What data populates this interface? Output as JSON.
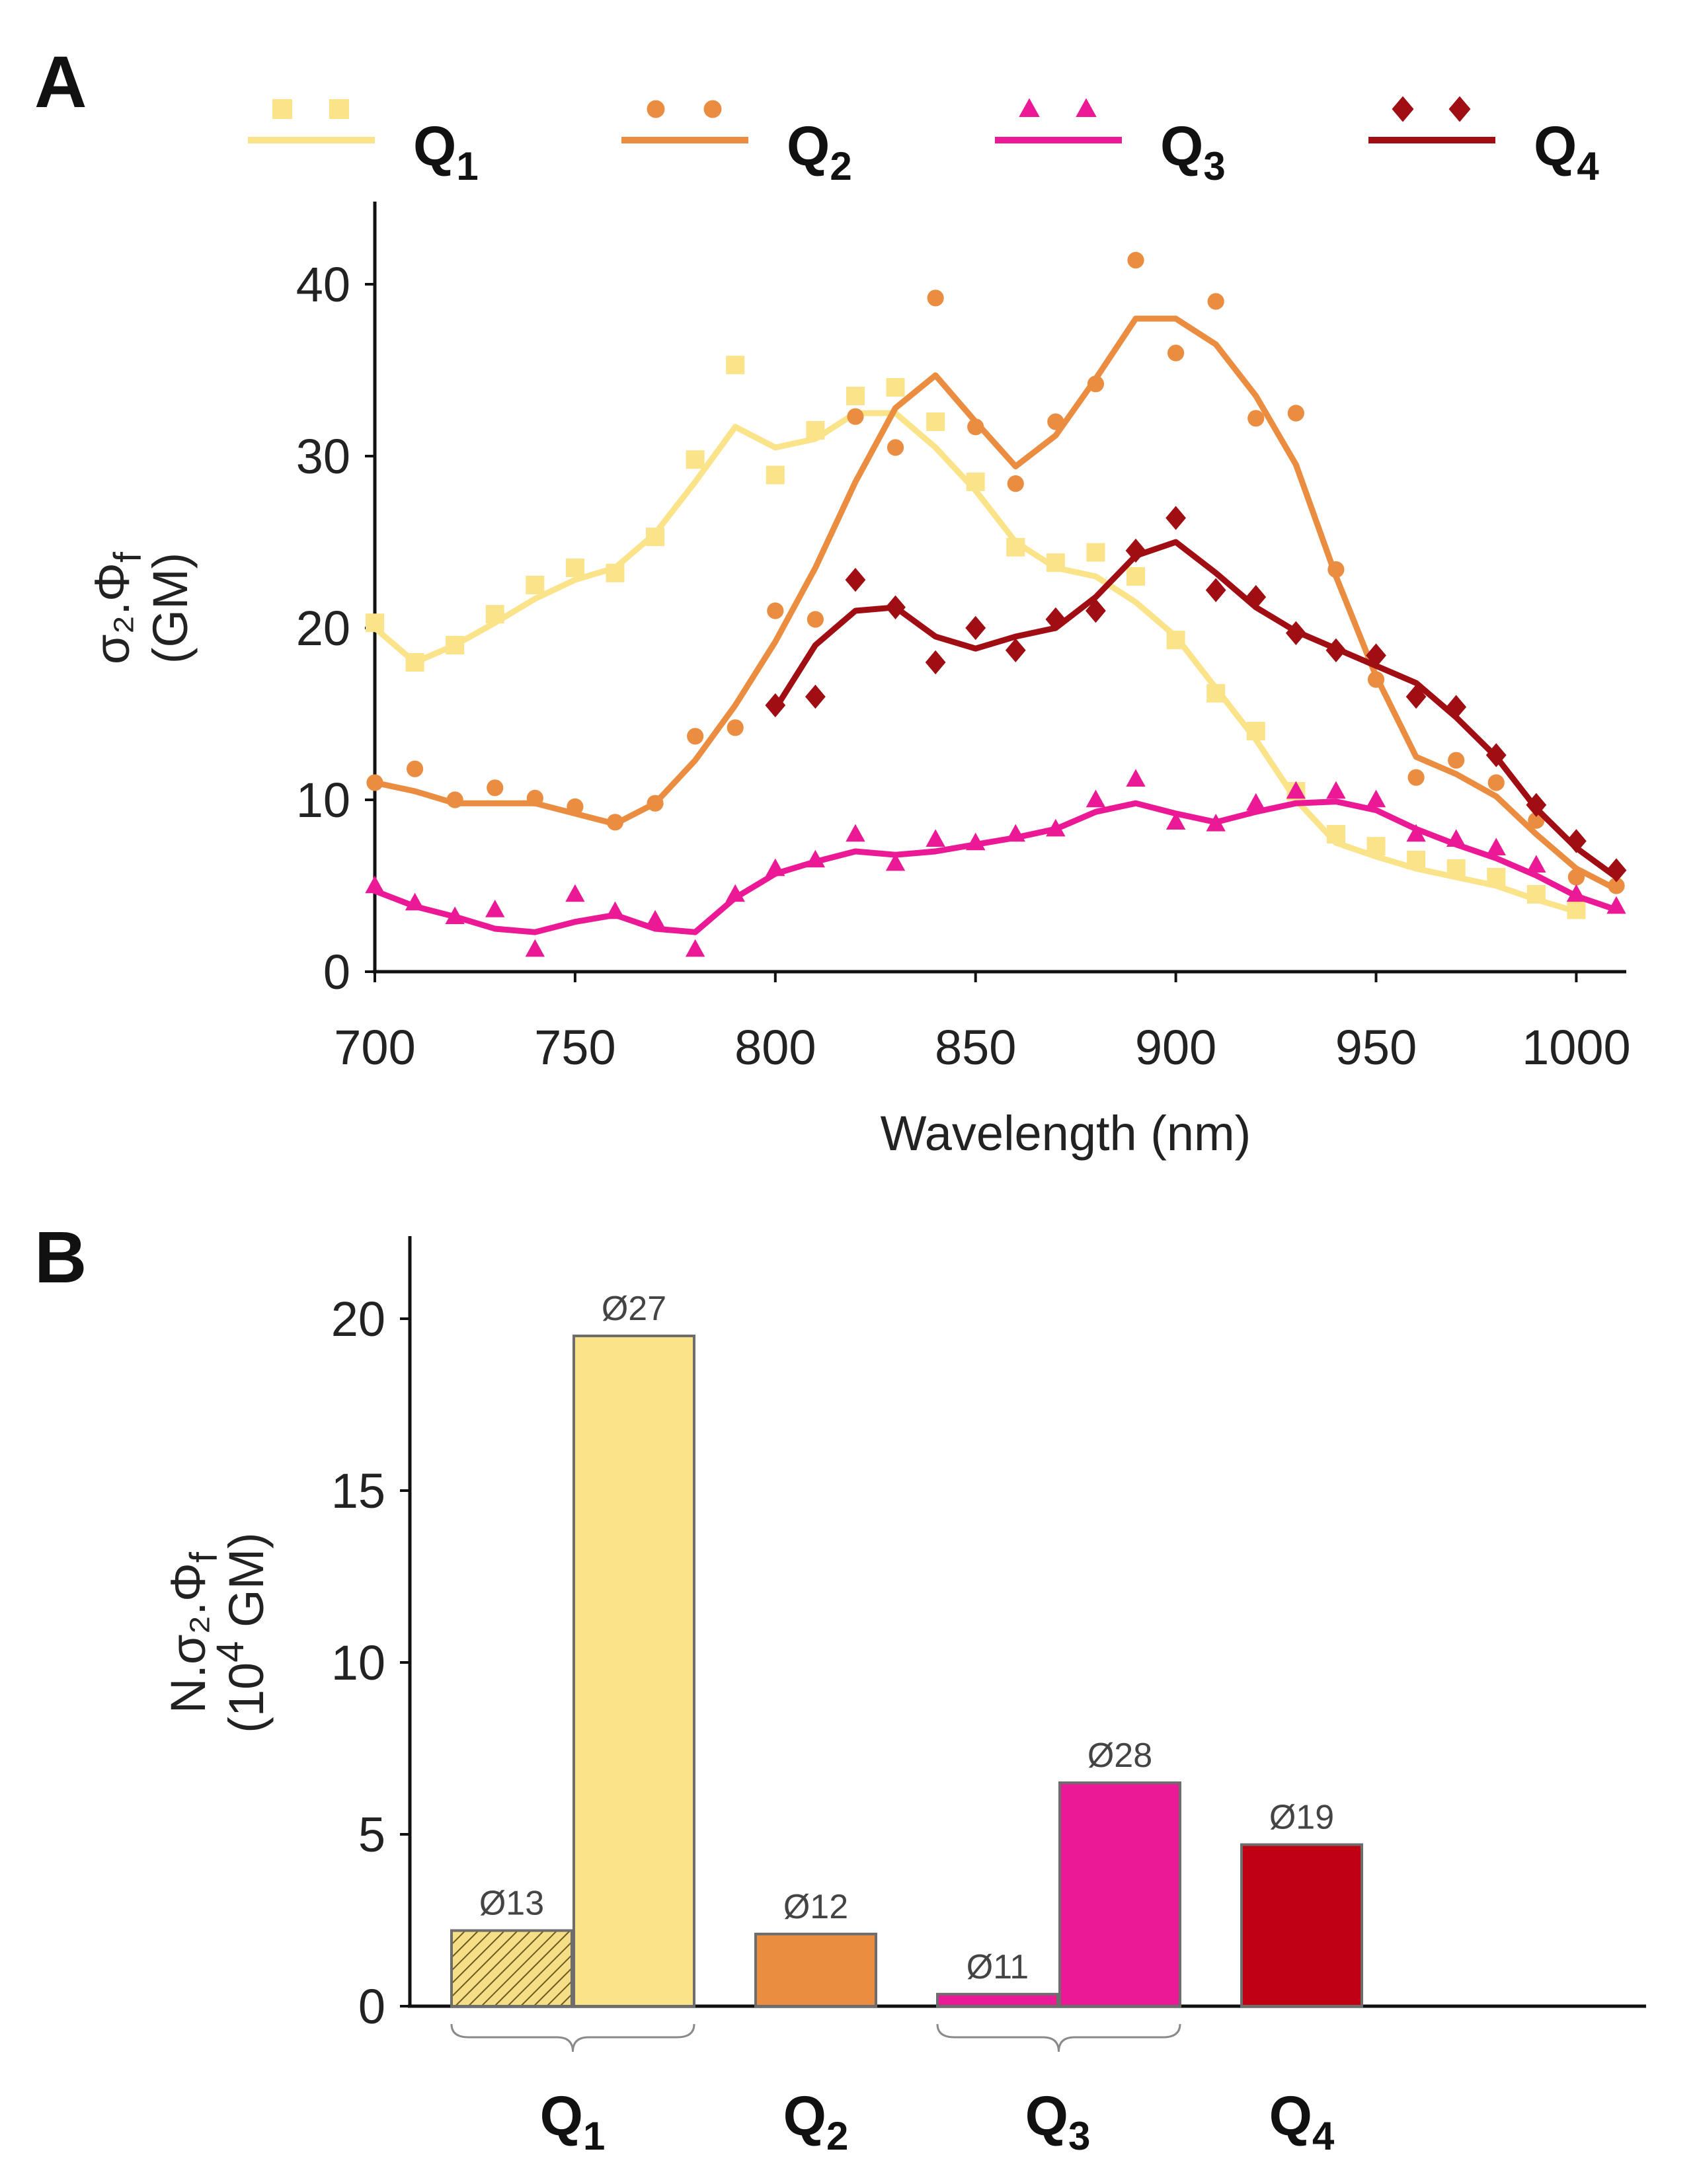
{
  "panel_a_letter": "A",
  "panel_b_letter": "B",
  "chart_data": [
    {
      "type": "line",
      "panel": "A",
      "xlabel": "Wavelength (nm)",
      "ylabel_main": "σ₂.Φ",
      "ylabel_sub": "f",
      "ylabel_unit": "(GM)",
      "xlim": [
        700,
        1010
      ],
      "ylim": [
        0,
        45
      ],
      "xticks": [
        "700",
        "750",
        "800",
        "850",
        "900",
        "950",
        "1000"
      ],
      "yticks": [
        "0",
        "10",
        "20",
        "30",
        "40"
      ],
      "legend": [
        {
          "name": "Q",
          "sub": "1",
          "color": "#FBE38A",
          "marker": "square"
        },
        {
          "name": "Q",
          "sub": "2",
          "color": "#EB8D41",
          "marker": "circle"
        },
        {
          "name": "Q",
          "sub": "3",
          "color": "#EC1996",
          "marker": "triangle"
        },
        {
          "name": "Q",
          "sub": "4",
          "color": "#A00D12",
          "marker": "diamond"
        }
      ],
      "series": [
        {
          "name": "Q1",
          "color": "#FBE38A",
          "marker": "square",
          "points": [
            [
              700,
              20.3
            ],
            [
              710,
              18
            ],
            [
              720,
              19
            ],
            [
              730,
              20.8
            ],
            [
              740,
              22.5
            ],
            [
              750,
              23.5
            ],
            [
              760,
              23.2
            ],
            [
              770,
              25.3
            ],
            [
              780,
              29.8
            ],
            [
              790,
              35.3
            ],
            [
              800,
              28.9
            ],
            [
              810,
              31.5
            ],
            [
              820,
              33.5
            ],
            [
              830,
              34
            ],
            [
              840,
              32
            ],
            [
              850,
              28.5
            ],
            [
              860,
              24.7
            ],
            [
              870,
              23.8
            ],
            [
              880,
              24.4
            ],
            [
              890,
              23
            ],
            [
              900,
              19.3
            ],
            [
              910,
              16.2
            ],
            [
              920,
              14
            ],
            [
              930,
              10.5
            ],
            [
              940,
              8
            ],
            [
              950,
              7.3
            ],
            [
              960,
              6.5
            ],
            [
              970,
              6
            ],
            [
              980,
              5.5
            ],
            [
              990,
              4.5
            ],
            [
              1000,
              3.6
            ]
          ],
          "line": [
            [
              700,
              20
            ],
            [
              710,
              18
            ],
            [
              720,
              19
            ],
            [
              730,
              20.3
            ],
            [
              740,
              21.7
            ],
            [
              750,
              22.8
            ],
            [
              760,
              23.5
            ],
            [
              770,
              25.5
            ],
            [
              780,
              28.5
            ],
            [
              790,
              31.7
            ],
            [
              800,
              30.5
            ],
            [
              810,
              31
            ],
            [
              820,
              32.5
            ],
            [
              830,
              32.5
            ],
            [
              840,
              30.5
            ],
            [
              850,
              28
            ],
            [
              860,
              25
            ],
            [
              870,
              23.5
            ],
            [
              880,
              23
            ],
            [
              890,
              21.5
            ],
            [
              900,
              19.5
            ],
            [
              910,
              16.5
            ],
            [
              920,
              13.5
            ],
            [
              930,
              10
            ],
            [
              940,
              7.5
            ],
            [
              950,
              6.7
            ],
            [
              960,
              6
            ],
            [
              970,
              5.5
            ],
            [
              980,
              5
            ],
            [
              990,
              4.2
            ],
            [
              1000,
              3.5
            ]
          ]
        },
        {
          "name": "Q2",
          "color": "#EB8D41",
          "marker": "circle",
          "points": [
            [
              700,
              11
            ],
            [
              710,
              11.8
            ],
            [
              720,
              10
            ],
            [
              730,
              10.7
            ],
            [
              740,
              10.1
            ],
            [
              750,
              9.6
            ],
            [
              760,
              8.7
            ],
            [
              770,
              9.8
            ],
            [
              780,
              13.7
            ],
            [
              790,
              14.2
            ],
            [
              800,
              21
            ],
            [
              810,
              20.5
            ],
            [
              820,
              32.3
            ],
            [
              830,
              30.5
            ],
            [
              840,
              39.2
            ],
            [
              850,
              31.7
            ],
            [
              860,
              28.4
            ],
            [
              870,
              32
            ],
            [
              880,
              34.2
            ],
            [
              890,
              41.4
            ],
            [
              900,
              36
            ],
            [
              910,
              39
            ],
            [
              920,
              32.2
            ],
            [
              930,
              32.5
            ],
            [
              940,
              23.4
            ],
            [
              950,
              17
            ],
            [
              960,
              11.3
            ],
            [
              970,
              12.3
            ],
            [
              980,
              11
            ],
            [
              990,
              8.8
            ],
            [
              1000,
              5.5
            ],
            [
              1010,
              5
            ]
          ],
          "line": [
            [
              700,
              11
            ],
            [
              710,
              10.5
            ],
            [
              720,
              9.8
            ],
            [
              730,
              9.8
            ],
            [
              740,
              9.8
            ],
            [
              750,
              9.2
            ],
            [
              760,
              8.6
            ],
            [
              770,
              9.8
            ],
            [
              780,
              12.3
            ],
            [
              790,
              15.5
            ],
            [
              800,
              19.2
            ],
            [
              810,
              23.5
            ],
            [
              820,
              28.5
            ],
            [
              830,
              32.8
            ],
            [
              840,
              34.7
            ],
            [
              850,
              32
            ],
            [
              860,
              29.4
            ],
            [
              870,
              31.2
            ],
            [
              880,
              34.5
            ],
            [
              890,
              38
            ],
            [
              900,
              38
            ],
            [
              910,
              36.5
            ],
            [
              920,
              33.5
            ],
            [
              930,
              29.5
            ],
            [
              940,
              23
            ],
            [
              950,
              17.2
            ],
            [
              960,
              12.5
            ],
            [
              970,
              11.5
            ],
            [
              980,
              10.2
            ],
            [
              990,
              8
            ],
            [
              1000,
              6
            ],
            [
              1010,
              4.8
            ]
          ]
        },
        {
          "name": "Q3",
          "color": "#EC1996",
          "marker": "triangle",
          "points": [
            [
              700,
              5
            ],
            [
              710,
              4
            ],
            [
              720,
              3.2
            ],
            [
              730,
              3.6
            ],
            [
              740,
              1.3
            ],
            [
              750,
              4.5
            ],
            [
              760,
              3.5
            ],
            [
              770,
              3
            ],
            [
              780,
              1.3
            ],
            [
              790,
              4.5
            ],
            [
              800,
              6
            ],
            [
              810,
              6.5
            ],
            [
              820,
              8
            ],
            [
              830,
              6.3
            ],
            [
              840,
              7.7
            ],
            [
              850,
              7.5
            ],
            [
              860,
              8
            ],
            [
              870,
              8.3
            ],
            [
              880,
              10
            ],
            [
              890,
              11.2
            ],
            [
              900,
              8.7
            ],
            [
              910,
              8.6
            ],
            [
              920,
              9.8
            ],
            [
              930,
              10.5
            ],
            [
              940,
              10.5
            ],
            [
              950,
              10
            ],
            [
              960,
              8
            ],
            [
              970,
              7.7
            ],
            [
              980,
              7.2
            ],
            [
              990,
              6.2
            ],
            [
              1000,
              4.5
            ],
            [
              1010,
              3.8
            ]
          ],
          "line": [
            [
              700,
              4.7
            ],
            [
              710,
              3.8
            ],
            [
              720,
              3.2
            ],
            [
              730,
              2.5
            ],
            [
              740,
              2.3
            ],
            [
              750,
              2.9
            ],
            [
              760,
              3.3
            ],
            [
              770,
              2.5
            ],
            [
              780,
              2.3
            ],
            [
              790,
              4.3
            ],
            [
              800,
              5.7
            ],
            [
              810,
              6.4
            ],
            [
              820,
              7
            ],
            [
              830,
              6.8
            ],
            [
              840,
              7
            ],
            [
              850,
              7.4
            ],
            [
              860,
              7.8
            ],
            [
              870,
              8.3
            ],
            [
              880,
              9.3
            ],
            [
              890,
              9.8
            ],
            [
              900,
              9.2
            ],
            [
              910,
              8.7
            ],
            [
              920,
              9.3
            ],
            [
              930,
              9.8
            ],
            [
              940,
              9.9
            ],
            [
              950,
              9.4
            ],
            [
              960,
              8.3
            ],
            [
              970,
              7.4
            ],
            [
              980,
              6.6
            ],
            [
              990,
              5.6
            ],
            [
              1000,
              4.4
            ],
            [
              1010,
              3.6
            ]
          ]
        },
        {
          "name": "Q4",
          "color": "#A00D12",
          "marker": "diamond",
          "points": [
            [
              800,
              15.5
            ],
            [
              810,
              16
            ],
            [
              820,
              22.8
            ],
            [
              830,
              21.2
            ],
            [
              840,
              18
            ],
            [
              850,
              20
            ],
            [
              860,
              18.7
            ],
            [
              870,
              20.5
            ],
            [
              880,
              21
            ],
            [
              890,
              24.5
            ],
            [
              900,
              26.4
            ],
            [
              910,
              22.2
            ],
            [
              920,
              21.8
            ],
            [
              930,
              19.7
            ],
            [
              940,
              18.7
            ],
            [
              950,
              18.4
            ],
            [
              960,
              16
            ],
            [
              970,
              15.4
            ],
            [
              980,
              12.6
            ],
            [
              990,
              9.7
            ],
            [
              1000,
              7.6
            ],
            [
              1010,
              5.9
            ]
          ],
          "line": [
            [
              800,
              15.3
            ],
            [
              810,
              19
            ],
            [
              820,
              21
            ],
            [
              830,
              21.2
            ],
            [
              840,
              19.5
            ],
            [
              850,
              18.8
            ],
            [
              860,
              19.5
            ],
            [
              870,
              20
            ],
            [
              880,
              21.8
            ],
            [
              890,
              24.2
            ],
            [
              900,
              25
            ],
            [
              910,
              23.2
            ],
            [
              920,
              21.2
            ],
            [
              930,
              19.8
            ],
            [
              940,
              18.8
            ],
            [
              950,
              17.8
            ],
            [
              960,
              16.8
            ],
            [
              970,
              14.8
            ],
            [
              980,
              12.5
            ],
            [
              990,
              9.5
            ],
            [
              1000,
              7.2
            ],
            [
              1010,
              5.5
            ]
          ]
        }
      ]
    },
    {
      "type": "bar",
      "panel": "B",
      "ylabel_main": "N.σ₂.Φ",
      "ylabel_sub": "f",
      "ylabel_unit_pre": "(10",
      "ylabel_unit_sup": "4",
      "ylabel_unit_post": " GM)",
      "ylim": [
        0,
        22
      ],
      "yticks": [
        "0",
        "5",
        "10",
        "15",
        "20"
      ],
      "categories": [
        {
          "name": "Q",
          "sub": "1"
        },
        {
          "name": "Q",
          "sub": "2"
        },
        {
          "name": "Q",
          "sub": "3"
        },
        {
          "name": "Q",
          "sub": "4"
        }
      ],
      "bars": [
        {
          "group": 0,
          "label": "Ø13",
          "value": 2.2,
          "color": "#FBE38A",
          "hatched": true
        },
        {
          "group": 0,
          "label": "Ø27",
          "value": 19.5,
          "color": "#FBE38A",
          "hatched": false
        },
        {
          "group": 1,
          "label": "Ø12",
          "value": 2.1,
          "color": "#EB8D41",
          "hatched": false
        },
        {
          "group": 2,
          "label": "Ø11",
          "value": 0.35,
          "color": "#EC1996",
          "hatched": false
        },
        {
          "group": 2,
          "label": "Ø28",
          "value": 6.5,
          "color": "#EC1996",
          "hatched": false
        },
        {
          "group": 3,
          "label": "Ø19",
          "value": 4.7,
          "color": "#C00012",
          "hatched": false
        }
      ]
    }
  ]
}
